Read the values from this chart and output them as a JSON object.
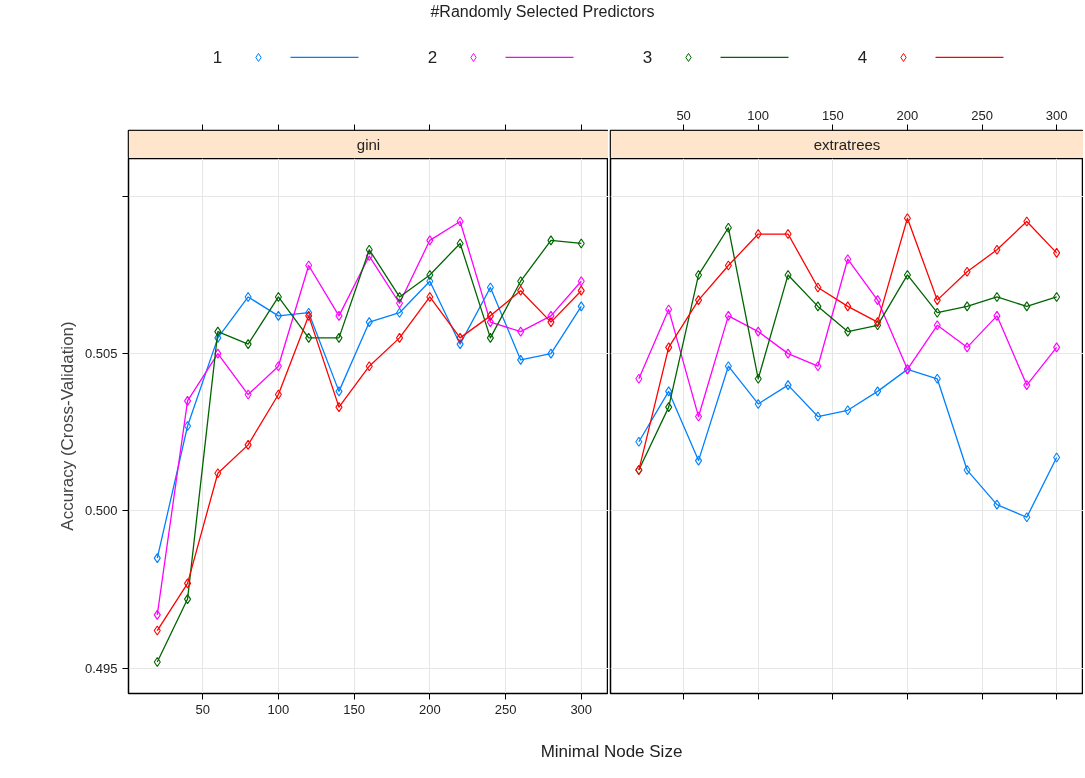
{
  "chart_data": [
    {
      "type": "line",
      "title": "gini",
      "xlabel": "Minimal Node Size",
      "ylabel": "Accuracy (Cross-Validation)",
      "legend_title": "#Randomly Selected Predictors",
      "legend": "top",
      "marker": "diamond",
      "grid": true,
      "x": [
        20,
        40,
        60,
        80,
        100,
        120,
        140,
        160,
        180,
        200,
        220,
        240,
        260,
        280,
        300
      ],
      "xlim": [
        1,
        318
      ],
      "xticks": [
        50,
        100,
        150,
        200,
        250,
        300
      ],
      "ylim": [
        0.4942,
        0.5112
      ],
      "yticks": [
        {
          "value": 0.495,
          "label": "0.495"
        },
        {
          "value": 0.5,
          "label": "0.500"
        },
        {
          "value": 0.505,
          "label": "0.505"
        },
        {
          "value": 0.51,
          "label": null
        }
      ],
      "series": [
        {
          "name": "1",
          "color": "#0080ff",
          "values": [
            0.4985,
            0.5027,
            0.5055,
            0.5068,
            0.5062,
            0.5063,
            0.5038,
            0.506,
            0.5063,
            0.5073,
            0.5053,
            0.5071,
            0.5048,
            0.505,
            0.5065
          ]
        },
        {
          "name": "2",
          "color": "#ff00ff",
          "values": [
            0.4967,
            0.5035,
            0.505,
            0.5037,
            0.5046,
            0.5078,
            0.5062,
            0.5081,
            0.5066,
            0.5086,
            0.5092,
            0.506,
            0.5057,
            0.5062,
            0.5073
          ]
        },
        {
          "name": "3",
          "color": "#006400",
          "values": [
            0.4952,
            0.4972,
            0.5057,
            0.5053,
            0.5068,
            0.5055,
            0.5055,
            0.5083,
            0.5068,
            0.5075,
            0.5085,
            0.5055,
            0.5073,
            0.5086,
            0.5085
          ]
        },
        {
          "name": "4",
          "color": "#ff0000",
          "values": [
            0.4962,
            0.4977,
            0.5012,
            0.5021,
            0.5037,
            0.5062,
            0.5033,
            0.5046,
            0.5055,
            0.5068,
            0.5055,
            0.5062,
            0.507,
            0.506,
            0.507
          ]
        }
      ]
    },
    {
      "type": "line",
      "title": "extratrees",
      "marker": "diamond",
      "grid": true,
      "tick_labels": false,
      "x": [
        20,
        40,
        60,
        80,
        100,
        120,
        140,
        160,
        180,
        200,
        220,
        240,
        260,
        280,
        300
      ],
      "x2lim": [
        1,
        318
      ],
      "x2ticks": [
        50,
        100,
        150,
        200,
        250,
        300
      ],
      "ylim": [
        0.4942,
        0.5112
      ],
      "yticks": [
        {
          "value": 0.495,
          "label": null
        },
        {
          "value": 0.5,
          "label": null
        },
        {
          "value": 0.505,
          "label": null
        },
        {
          "value": 0.51,
          "label": null
        }
      ],
      "series": [
        {
          "color": "#0080ff",
          "values": [
            0.5022,
            0.5038,
            0.5016,
            0.5046,
            0.5034,
            0.504,
            0.503,
            0.5032,
            0.5038,
            0.5045,
            0.5042,
            0.5013,
            0.5002,
            0.4998,
            0.5017
          ]
        },
        {
          "color": "#ff00ff",
          "values": [
            0.5042,
            0.5064,
            0.503,
            0.5062,
            0.5057,
            0.505,
            0.5046,
            0.508,
            0.5067,
            0.5045,
            0.5059,
            0.5052,
            0.5062,
            0.504,
            0.5052
          ]
        },
        {
          "color": "#006400",
          "values": [
            0.5013,
            0.5033,
            0.5075,
            0.509,
            0.5042,
            0.5075,
            0.5065,
            0.5057,
            0.5059,
            0.5075,
            0.5063,
            0.5065,
            0.5068,
            0.5065,
            0.5068
          ]
        },
        {
          "color": "#ff0000",
          "values": [
            0.5013,
            0.5052,
            0.5067,
            0.5078,
            0.5088,
            0.5088,
            0.5071,
            0.5065,
            0.506,
            0.5093,
            0.5067,
            0.5076,
            0.5083,
            0.5092,
            0.5082
          ]
        }
      ]
    }
  ]
}
